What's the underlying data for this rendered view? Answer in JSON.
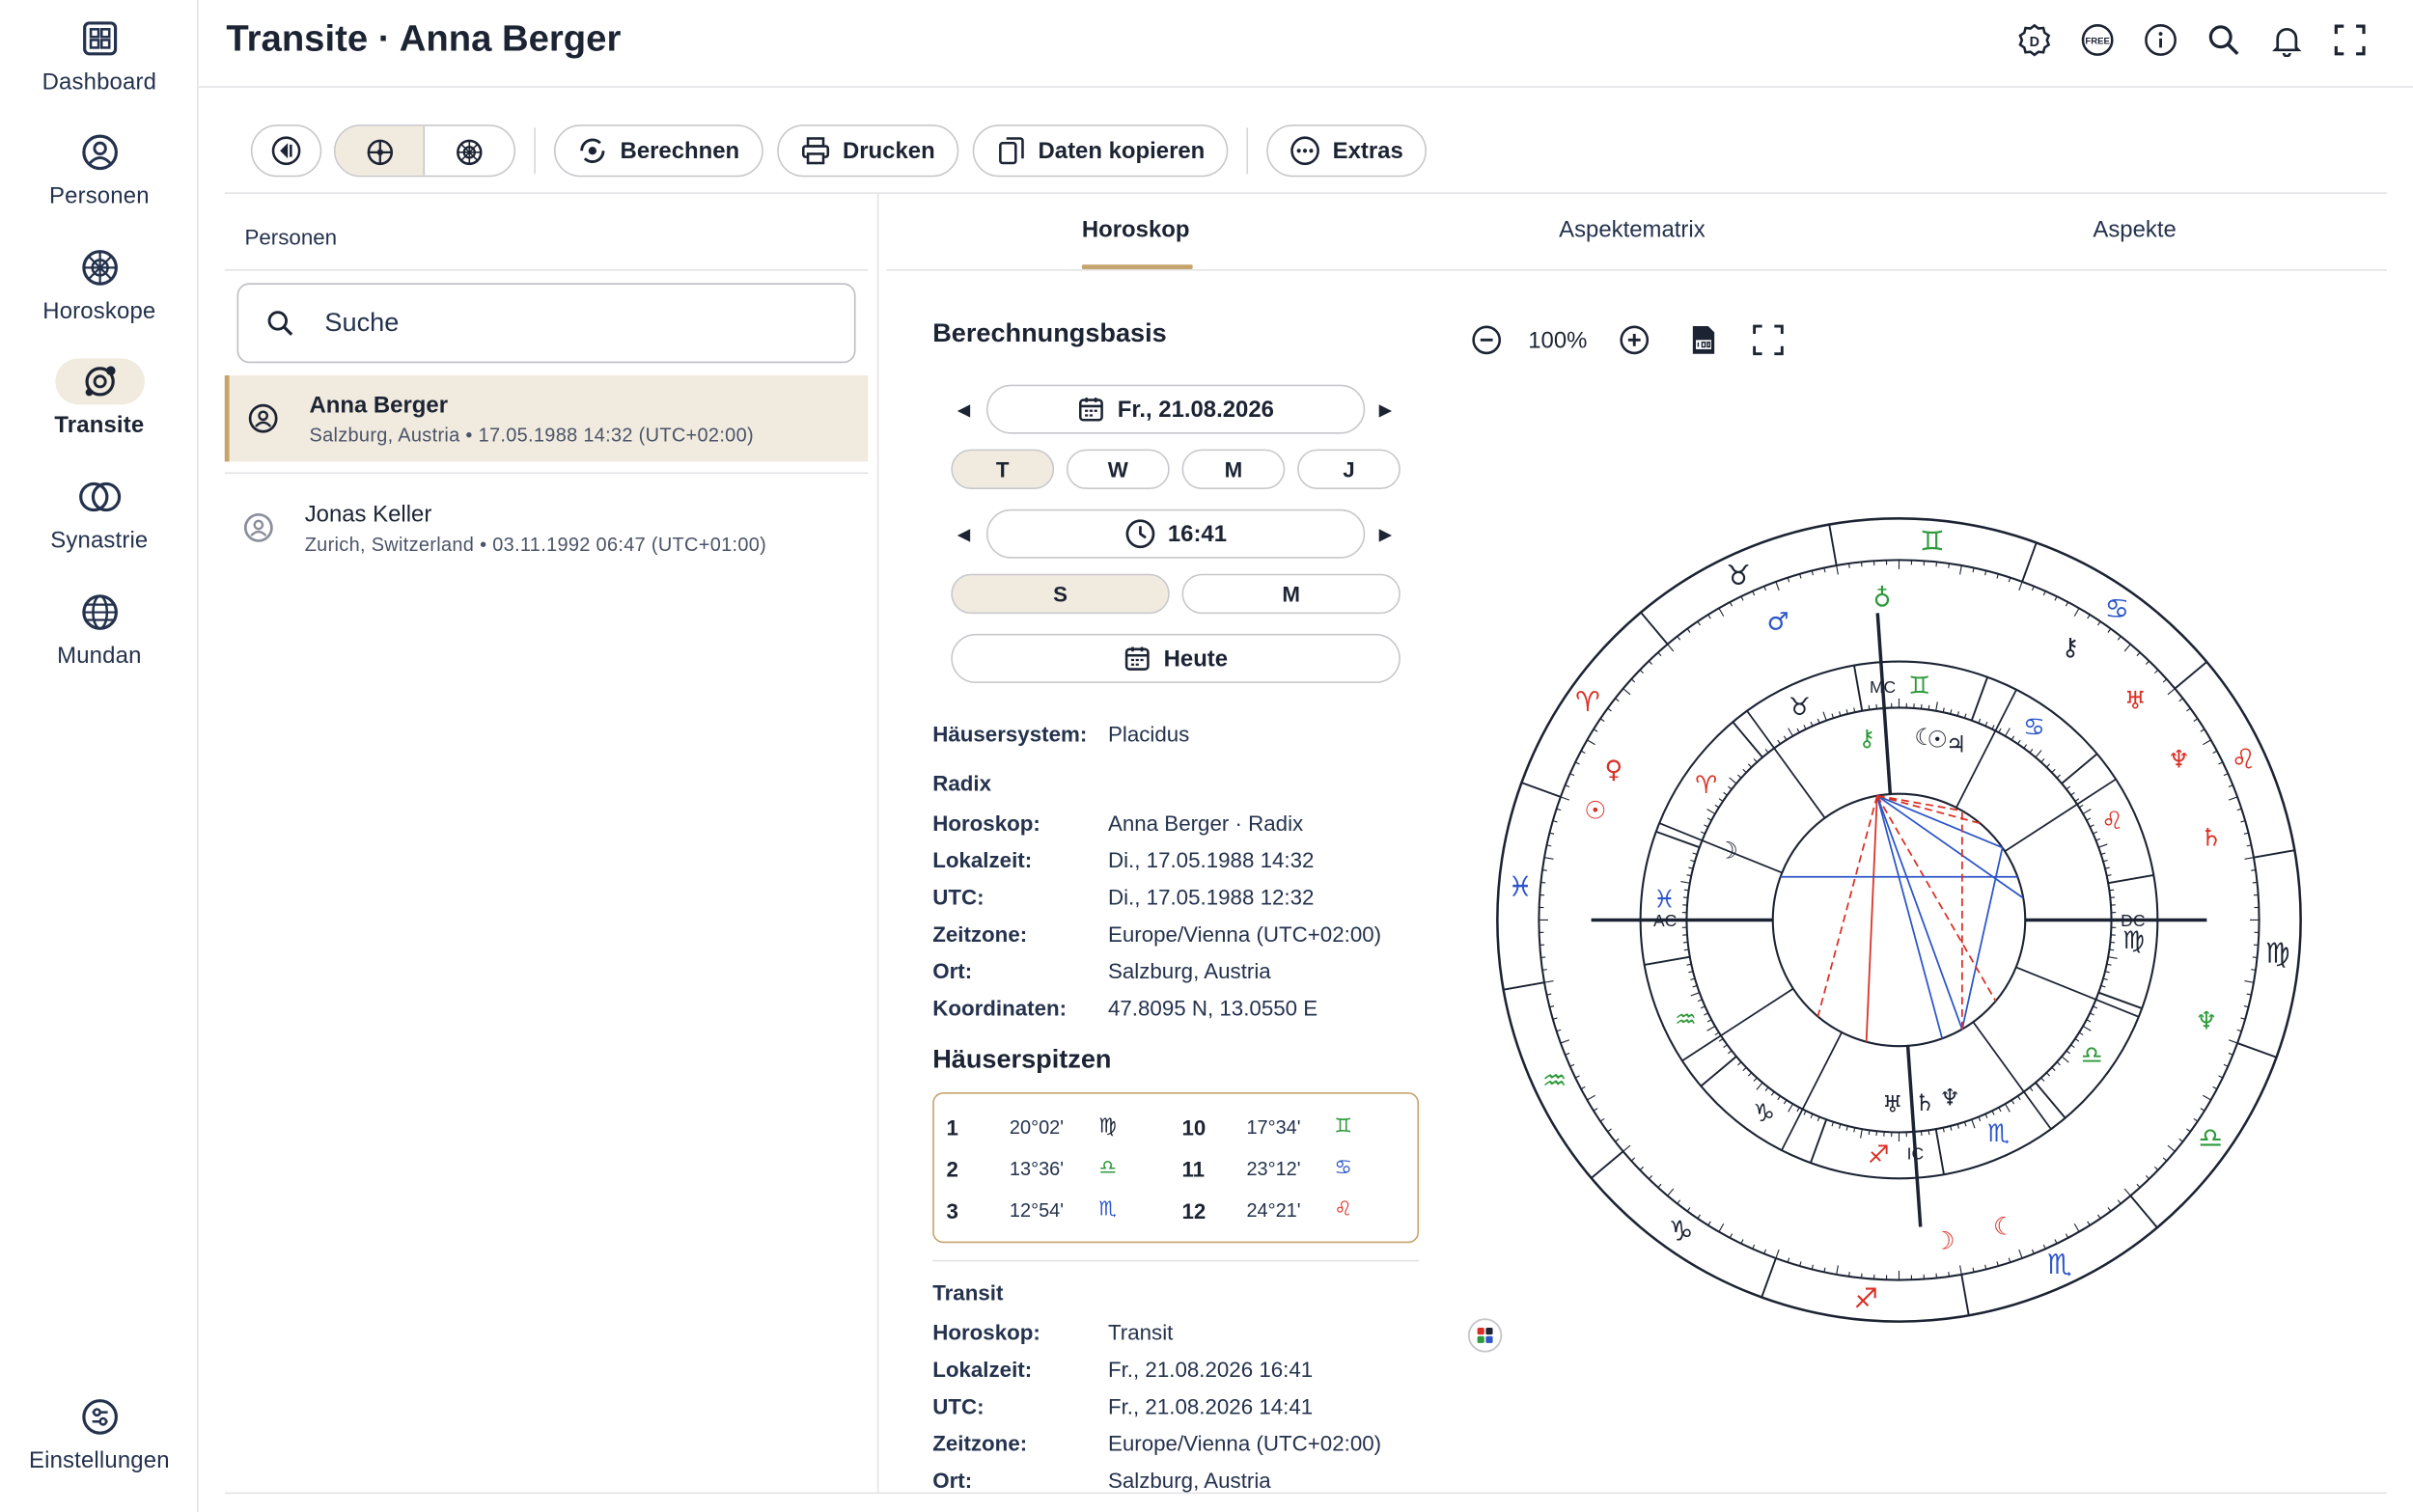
{
  "nav": {
    "dashboard": "Dashboard",
    "persons": "Personen",
    "horoscopes": "Horoskope",
    "transits": "Transite",
    "synastry": "Synastrie",
    "mundane": "Mundan",
    "settings": "Einstellungen"
  },
  "header": {
    "title": "Transite · Anna Berger"
  },
  "toolbar": {
    "calculate": "Berechnen",
    "print": "Drucken",
    "copy_data": "Daten kopieren",
    "extras": "Extras"
  },
  "persons": {
    "title": "Personen",
    "search_placeholder": "Suche",
    "items": [
      {
        "name": "Anna Berger",
        "sub": "Salzburg, Austria • 17.05.1988 14:32 (UTC+02:00)"
      },
      {
        "name": "Jonas Keller",
        "sub": "Zurich, Switzerland • 03.11.1992 06:47 (UTC+01:00)"
      }
    ]
  },
  "tabs": {
    "horoscope": "Horoskop",
    "aspect_matrix": "Aspektematrix",
    "aspects": "Aspekte"
  },
  "basis": {
    "title": "Berechnungsbasis",
    "date": "Fr., 21.08.2026",
    "step_buttons": [
      "T",
      "W",
      "M",
      "J"
    ],
    "time": "16:41",
    "time_steps": [
      "S",
      "M"
    ],
    "today": "Heute",
    "house_system_label": "Häusersystem:",
    "house_system_value": "Placidus"
  },
  "radix": {
    "title": "Radix",
    "rows": [
      {
        "k": "Horoskop:",
        "v": "Anna Berger · Radix"
      },
      {
        "k": "Lokalzeit:",
        "v": "Di., 17.05.1988 14:32"
      },
      {
        "k": "UTC:",
        "v": "Di., 17.05.1988 12:32"
      },
      {
        "k": "Zeitzone:",
        "v": "Europe/Vienna (UTC+02:00)"
      },
      {
        "k": "Ort:",
        "v": "Salzburg, Austria"
      },
      {
        "k": "Koordinaten:",
        "v": "47.8095 N, 13.0550 E"
      }
    ]
  },
  "houses": {
    "title": "Häuserspitzen",
    "items": [
      {
        "n": "1",
        "deg": "20°02'",
        "sign": "♍",
        "color": "#1c2333"
      },
      {
        "n": "2",
        "deg": "13°36'",
        "sign": "♎",
        "color": "#2e9a3a"
      },
      {
        "n": "3",
        "deg": "12°54'",
        "sign": "♏",
        "color": "#2b55c8"
      },
      {
        "n": "10",
        "deg": "17°34'",
        "sign": "♊",
        "color": "#2e9a3a"
      },
      {
        "n": "11",
        "deg": "23°12'",
        "sign": "♋",
        "color": "#2b55c8"
      },
      {
        "n": "12",
        "deg": "24°21'",
        "sign": "♌",
        "color": "#d93025"
      }
    ]
  },
  "transit": {
    "title": "Transit",
    "rows": [
      {
        "k": "Horoskop:",
        "v": "Transit"
      },
      {
        "k": "Lokalzeit:",
        "v": "Fr., 21.08.2026 16:41"
      },
      {
        "k": "UTC:",
        "v": "Fr., 21.08.2026 14:41"
      },
      {
        "k": "Zeitzone:",
        "v": "Europe/Vienna (UTC+02:00)"
      },
      {
        "k": "Ort:",
        "v": "Salzburg, Austria"
      }
    ]
  },
  "chart_tools": {
    "zoom": "100%"
  },
  "wheel": {
    "axis_labels": {
      "ac": "AC",
      "dc": "DC",
      "mc": "MC",
      "ic": "IC"
    },
    "colors": {
      "fire": "#d93025",
      "earth": "#1c2333",
      "air": "#2e9a3a",
      "water": "#2b55c8"
    },
    "outer_signs": [
      {
        "glyph": "♊",
        "color": "#2e9a3a"
      },
      {
        "glyph": "♉",
        "color": "#1c2333"
      },
      {
        "glyph": "♈",
        "color": "#d93025"
      },
      {
        "glyph": "♓",
        "color": "#2b55c8"
      },
      {
        "glyph": "♒",
        "color": "#2e9a3a"
      },
      {
        "glyph": "♑",
        "color": "#1c2333"
      },
      {
        "glyph": "♐",
        "color": "#d93025"
      },
      {
        "glyph": "♏",
        "color": "#2b55c8"
      },
      {
        "glyph": "♎",
        "color": "#2e9a3a"
      },
      {
        "glyph": "♍",
        "color": "#1c2333"
      },
      {
        "glyph": "♌",
        "color": "#d93025"
      },
      {
        "glyph": "♋",
        "color": "#2b55c8"
      }
    ],
    "inner_signs": [
      {
        "glyph": "♊",
        "color": "#2e9a3a"
      },
      {
        "glyph": "♉",
        "color": "#1c2333"
      },
      {
        "glyph": "♈",
        "color": "#d93025"
      },
      {
        "glyph": "♓",
        "color": "#2b55c8"
      },
      {
        "glyph": "♒",
        "color": "#2e9a3a"
      },
      {
        "glyph": "♑",
        "color": "#1c2333"
      },
      {
        "glyph": "♐",
        "color": "#d93025"
      },
      {
        "glyph": "♏",
        "color": "#2b55c8"
      },
      {
        "glyph": "♎",
        "color": "#2e9a3a"
      },
      {
        "glyph": "♍",
        "color": "#1c2333"
      },
      {
        "glyph": "♌",
        "color": "#d93025"
      },
      {
        "glyph": "♋",
        "color": "#2b55c8"
      }
    ],
    "transit_planets": [
      {
        "glyph": "♂",
        "color": "#2b55c8"
      },
      {
        "glyph": "♁",
        "color": "#2e9a3a"
      },
      {
        "glyph": "♄",
        "color": "#d93025"
      },
      {
        "glyph": "☉",
        "color": "#d93025"
      },
      {
        "glyph": "♀",
        "color": "#d93025"
      },
      {
        "glyph": "⚷",
        "color": "#1c2333"
      },
      {
        "glyph": "♅",
        "color": "#d93025"
      },
      {
        "glyph": "♆",
        "color": "#d93025"
      },
      {
        "glyph": "☽",
        "color": "#d93025"
      },
      {
        "glyph": "☾",
        "color": "#d93025"
      },
      {
        "glyph": "♆",
        "color": "#2e9a3a"
      }
    ],
    "radix_planets": [
      {
        "glyph": "☾",
        "color": "#1c2333"
      },
      {
        "glyph": "☉",
        "color": "#1c2333"
      },
      {
        "glyph": "♃",
        "color": "#1c2333"
      },
      {
        "glyph": "♄",
        "color": "#1c2333"
      },
      {
        "glyph": "♆",
        "color": "#1c2333"
      },
      {
        "glyph": "♅",
        "color": "#1c2333"
      },
      {
        "glyph": "⚷",
        "color": "#2e9a3a"
      },
      {
        "glyph": "☽",
        "color": "#1c2333"
      }
    ]
  }
}
